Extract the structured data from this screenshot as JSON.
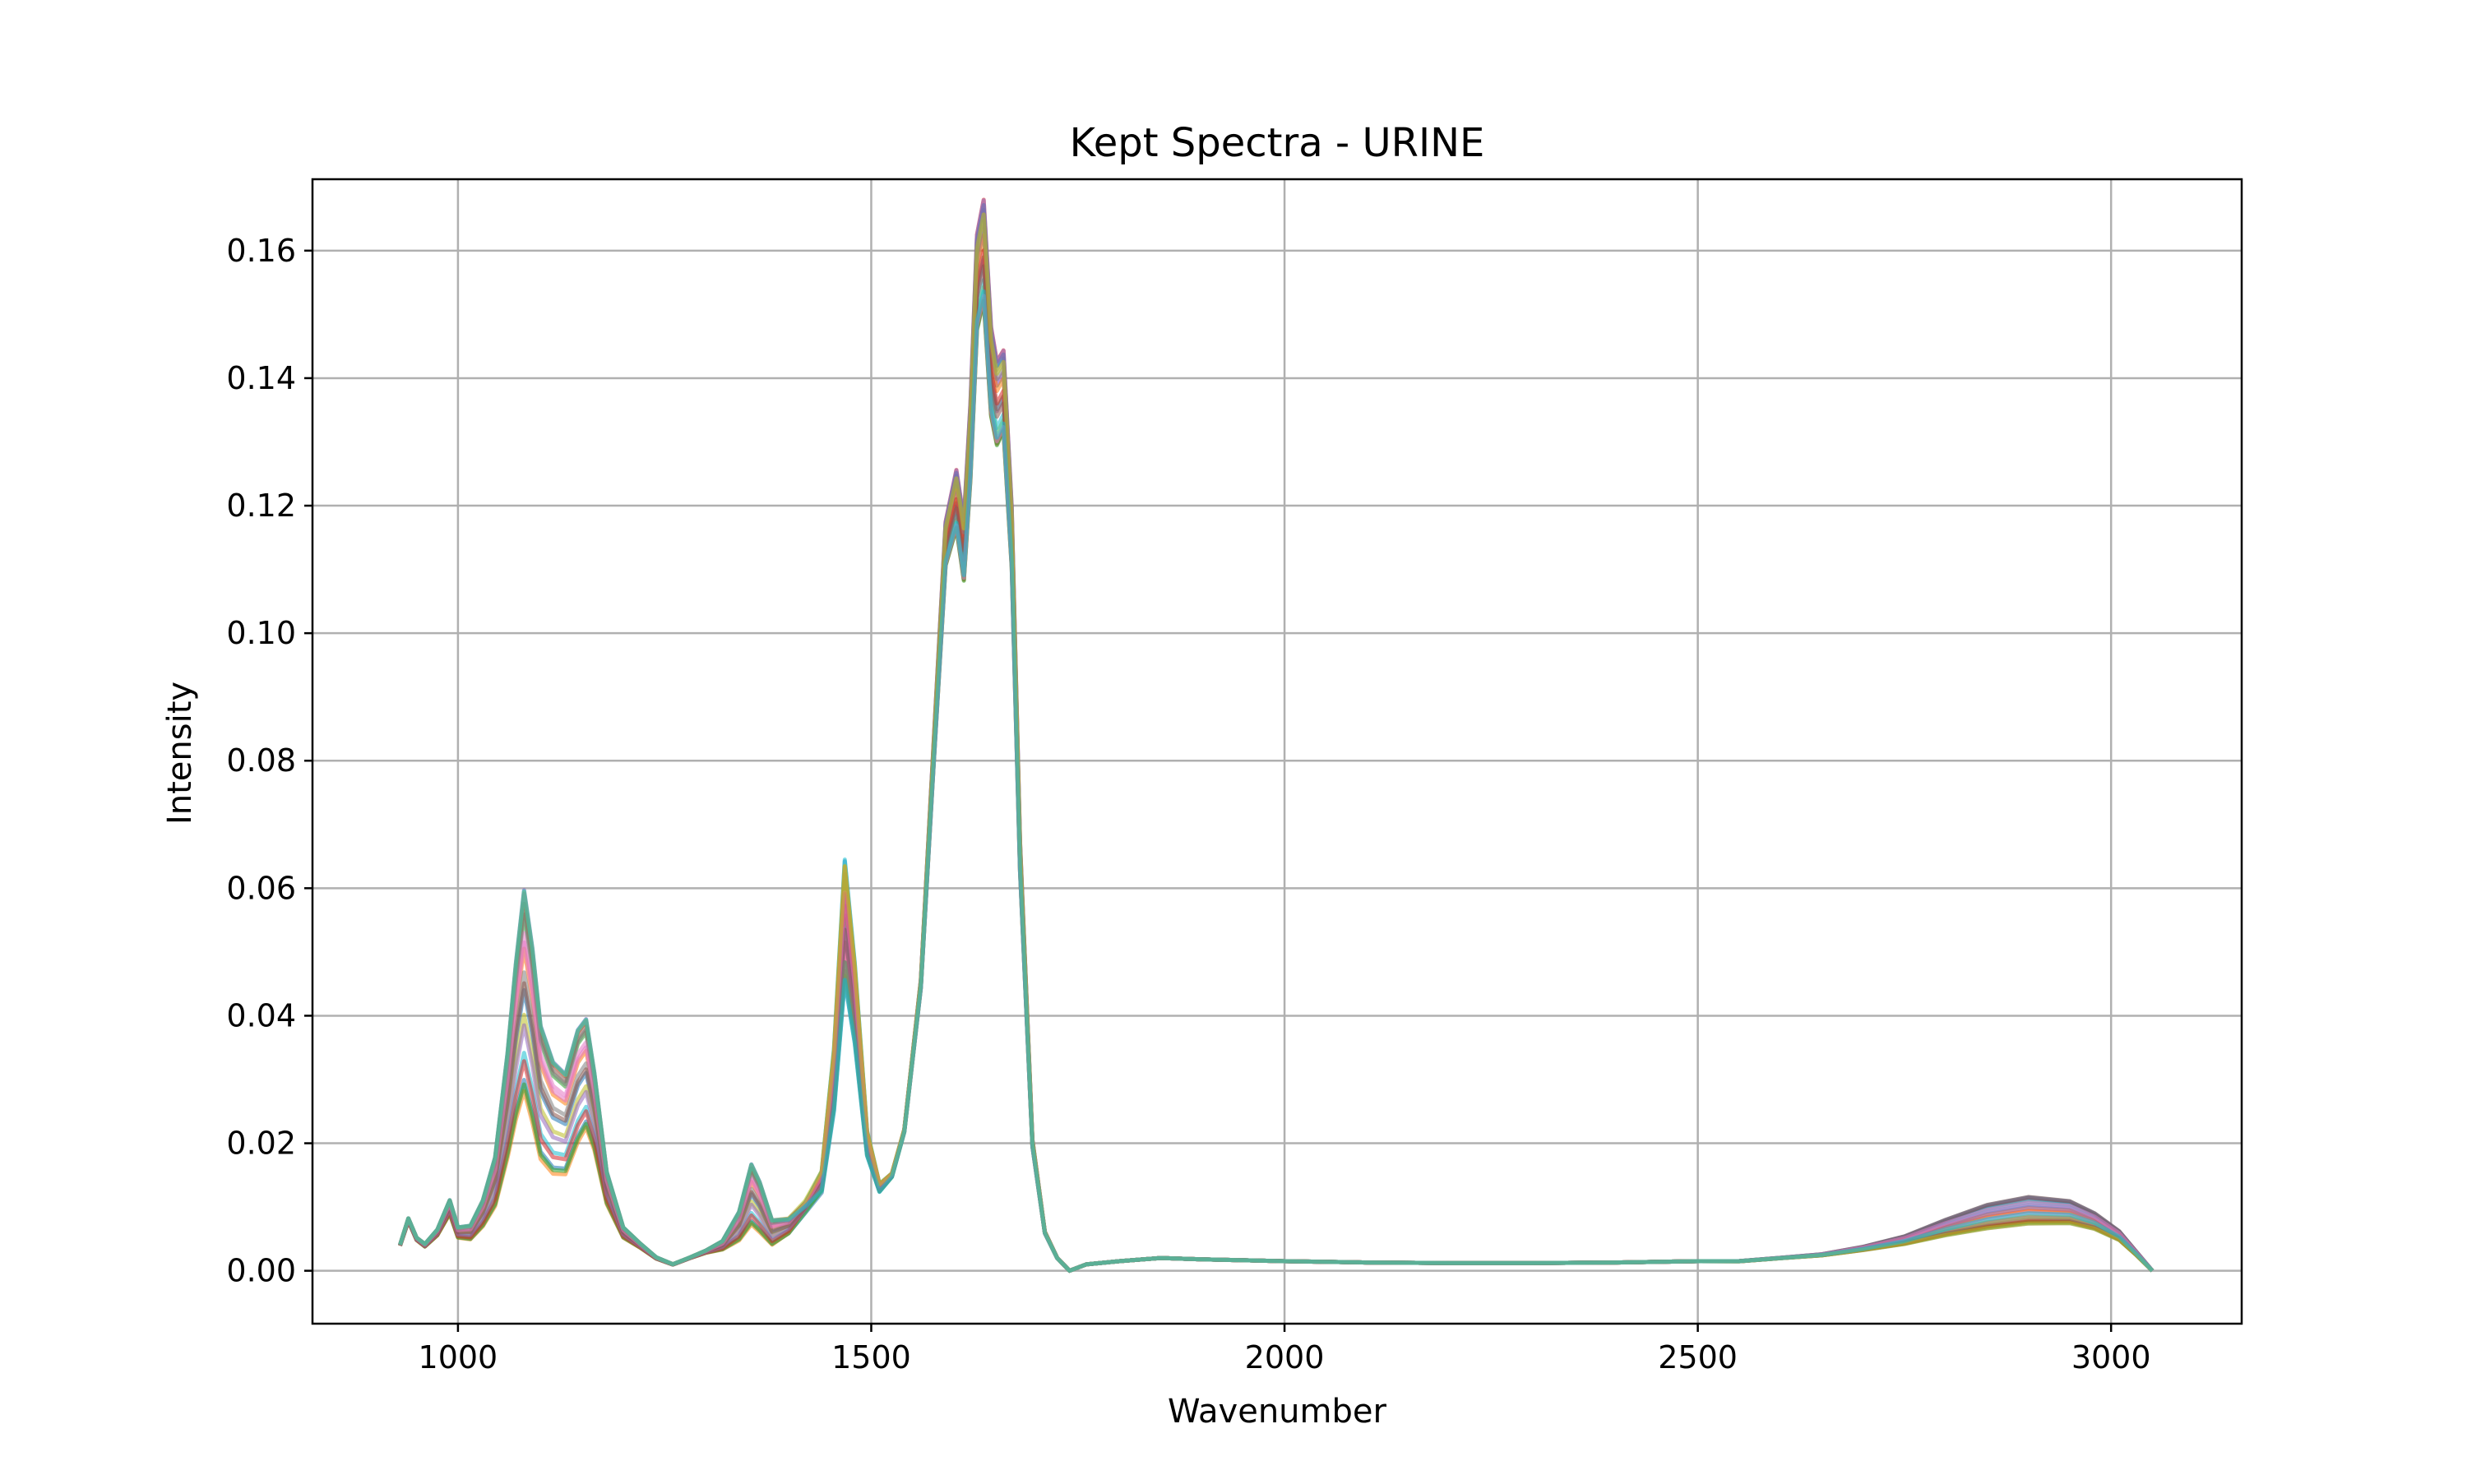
{
  "chart_data": {
    "type": "line",
    "title": "Kept Spectra - URINE",
    "xlabel": "Wavenumber",
    "ylabel": "Intensity",
    "xlim": [
      824,
      3158
    ],
    "ylim": [
      -0.0083,
      0.1712
    ],
    "x_ticks": [
      1000,
      1500,
      2000,
      2500,
      3000
    ],
    "x_tick_labels": [
      "1000",
      "1500",
      "2000",
      "2500",
      "3000"
    ],
    "y_ticks": [
      0.0,
      0.02,
      0.04,
      0.06,
      0.08,
      0.1,
      0.12,
      0.14,
      0.16
    ],
    "y_tick_labels": [
      "0.00",
      "0.02",
      "0.04",
      "0.06",
      "0.08",
      "0.10",
      "0.12",
      "0.14",
      "0.16"
    ],
    "grid": true,
    "legend": "none",
    "series_count": 20,
    "colors": [
      "#1f77b4",
      "#ff7f0e",
      "#2ca02c",
      "#d62728",
      "#9467bd",
      "#8c564b",
      "#e377c2",
      "#7f7f7f",
      "#bcbd22",
      "#17becf"
    ],
    "base_spectrum": {
      "x": [
        930,
        940,
        950,
        960,
        975,
        990,
        1000,
        1015,
        1030,
        1045,
        1060,
        1070,
        1080,
        1090,
        1100,
        1115,
        1130,
        1145,
        1155,
        1165,
        1180,
        1200,
        1220,
        1240,
        1260,
        1280,
        1300,
        1320,
        1340,
        1355,
        1365,
        1380,
        1400,
        1420,
        1440,
        1455,
        1468,
        1480,
        1495,
        1510,
        1525,
        1540,
        1560,
        1575,
        1590,
        1603,
        1612,
        1620,
        1628,
        1636,
        1645,
        1652,
        1660,
        1670,
        1680,
        1695,
        1710,
        1725,
        1740,
        1760,
        1800,
        1850,
        1900,
        2000,
        2100,
        2200,
        2300,
        2400,
        2500,
        2550,
        2600,
        2650,
        2700,
        2750,
        2800,
        2850,
        2900,
        2950,
        2980,
        3010,
        3030,
        3050
      ],
      "y": [
        0.004,
        0.008,
        0.005,
        0.004,
        0.006,
        0.01,
        0.006,
        0.006,
        0.009,
        0.014,
        0.026,
        0.036,
        0.044,
        0.037,
        0.028,
        0.024,
        0.023,
        0.029,
        0.031,
        0.025,
        0.013,
        0.006,
        0.004,
        0.002,
        0.001,
        0.002,
        0.003,
        0.004,
        0.007,
        0.012,
        0.01,
        0.006,
        0.007,
        0.01,
        0.014,
        0.03,
        0.055,
        0.042,
        0.02,
        0.013,
        0.015,
        0.022,
        0.045,
        0.08,
        0.114,
        0.121,
        0.113,
        0.13,
        0.155,
        0.16,
        0.141,
        0.136,
        0.138,
        0.115,
        0.065,
        0.02,
        0.006,
        0.002,
        0.0,
        0.001,
        0.0015,
        0.002,
        0.0018,
        0.0015,
        0.0013,
        0.0012,
        0.0012,
        0.0013,
        0.0015,
        0.0015,
        0.002,
        0.0025,
        0.0035,
        0.0048,
        0.0068,
        0.0085,
        0.0095,
        0.0092,
        0.0078,
        0.0055,
        0.0028,
        0.0
      ]
    }
  }
}
